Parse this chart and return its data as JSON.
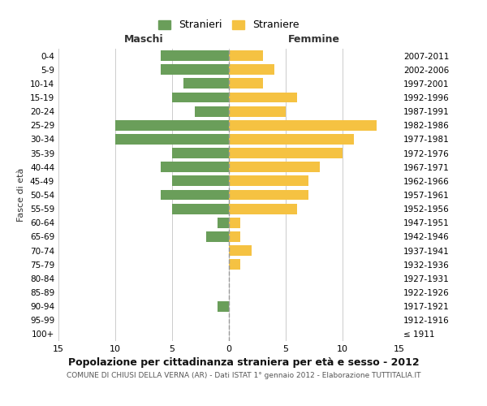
{
  "age_groups": [
    "100+",
    "95-99",
    "90-94",
    "85-89",
    "80-84",
    "75-79",
    "70-74",
    "65-69",
    "60-64",
    "55-59",
    "50-54",
    "45-49",
    "40-44",
    "35-39",
    "30-34",
    "25-29",
    "20-24",
    "15-19",
    "10-14",
    "5-9",
    "0-4"
  ],
  "birth_years": [
    "≤ 1911",
    "1912-1916",
    "1917-1921",
    "1922-1926",
    "1927-1931",
    "1932-1936",
    "1937-1941",
    "1942-1946",
    "1947-1951",
    "1952-1956",
    "1957-1961",
    "1962-1966",
    "1967-1971",
    "1972-1976",
    "1977-1981",
    "1982-1986",
    "1987-1991",
    "1992-1996",
    "1997-2001",
    "2002-2006",
    "2007-2011"
  ],
  "maschi": [
    0,
    0,
    1,
    0,
    0,
    0,
    0,
    2,
    1,
    5,
    6,
    5,
    6,
    5,
    10,
    10,
    3,
    5,
    4,
    6,
    6
  ],
  "femmine": [
    0,
    0,
    0,
    0,
    0,
    1,
    2,
    1,
    1,
    6,
    7,
    7,
    8,
    10,
    11,
    13,
    5,
    6,
    3,
    4,
    3
  ],
  "male_color": "#6a9e5a",
  "female_color": "#f5c242",
  "title": "Popolazione per cittadinanza straniera per età e sesso - 2012",
  "subtitle": "COMUNE DI CHIUSI DELLA VERNA (AR) - Dati ISTAT 1° gennaio 2012 - Elaborazione TUTTITALIA.IT",
  "xlabel_left": "Maschi",
  "xlabel_right": "Femmine",
  "ylabel": "Fasce di età",
  "legend_male": "Stranieri",
  "legend_female": "Straniere",
  "xlim": 15,
  "background_color": "#ffffff",
  "grid_color": "#cccccc"
}
